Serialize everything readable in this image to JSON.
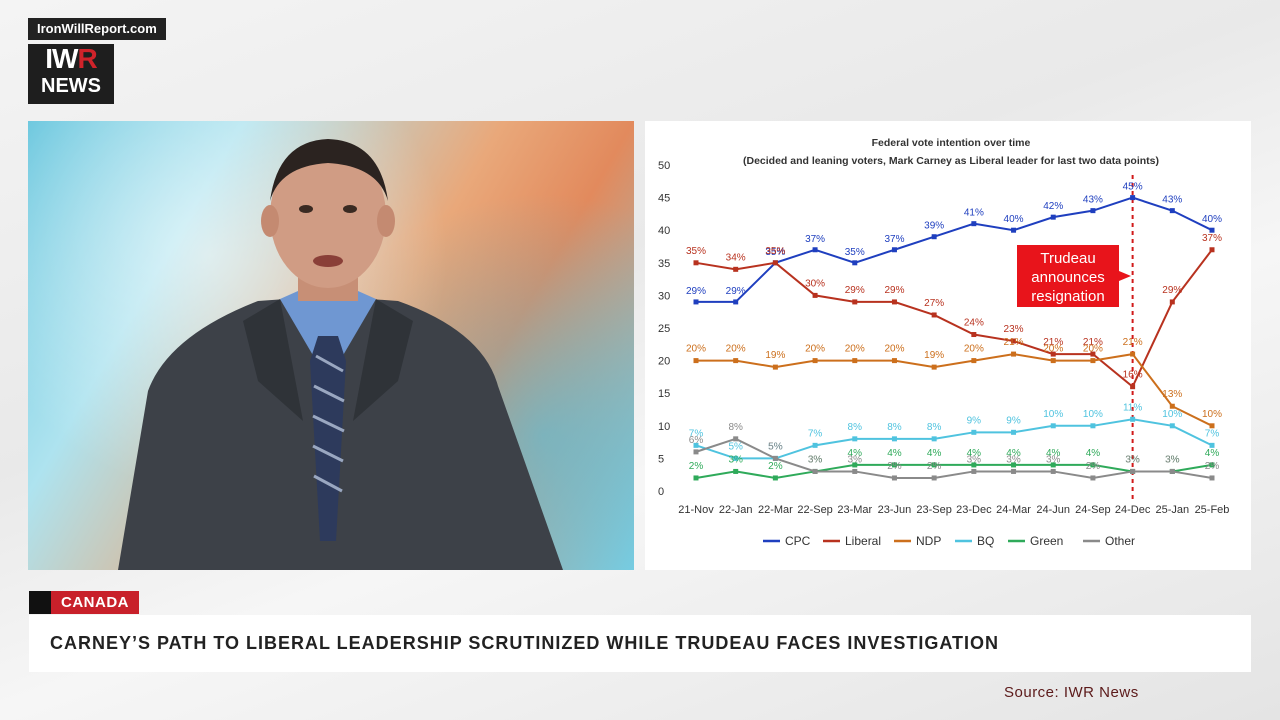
{
  "brand": {
    "url": "IronWillReport.com",
    "logo_top": "IWR",
    "logo_bottom": "NEWS"
  },
  "lower_third": {
    "category": "CANADA",
    "headline": "CARNEY’S PATH TO LIBERAL LEADERSHIP SCRUTINIZED WHILE TRUDEAU FACES INVESTIGATION",
    "source": "Source: IWR News"
  },
  "colors": {
    "accent": "#c8202a"
  },
  "chart_data": {
    "type": "line",
    "title": "Federal vote intention over time",
    "subtitle": "(Decided and leaning voters, Mark Carney as Liberal leader for last two data points)",
    "categories": [
      "21-Nov",
      "22-Jan",
      "22-Mar",
      "22-Sep",
      "23-Mar",
      "23-Jun",
      "23-Sep",
      "23-Dec",
      "24-Mar",
      "24-Jun",
      "24-Sep",
      "24-Dec",
      "25-Jan",
      "25-Feb"
    ],
    "ylim": [
      0,
      50
    ],
    "yticks": [
      "0",
      "5",
      "10",
      "15",
      "20",
      "25",
      "30",
      "35",
      "40",
      "45",
      "50"
    ],
    "grid": false,
    "legend": "bottom",
    "series": [
      {
        "name": "CPC",
        "color": "#1f3fbf",
        "values": [
          29,
          29,
          35,
          37,
          35,
          37,
          39,
          41,
          40,
          42,
          43,
          45,
          43,
          40
        ],
        "labels": [
          "29%",
          "29%",
          "35%",
          "37%",
          "35%",
          "37%",
          "39%",
          "41%",
          "40%",
          "42%",
          "43%",
          "45%",
          "43%",
          "40%"
        ]
      },
      {
        "name": "Liberal",
        "color": "#b8321f",
        "values": [
          35,
          34,
          35,
          30,
          29,
          29,
          27,
          24,
          23,
          21,
          21,
          16,
          29,
          37
        ],
        "labels": [
          "35%",
          "34%",
          "35%",
          "30%",
          "29%",
          "29%",
          "27%",
          "24%",
          "23%",
          "21%",
          "21%",
          "16%",
          "29%",
          "37%"
        ]
      },
      {
        "name": "NDP",
        "color": "#cc6f1c",
        "values": [
          20,
          20,
          19,
          20,
          20,
          20,
          19,
          20,
          21,
          20,
          20,
          21,
          13,
          10
        ],
        "labels": [
          "20%",
          "20%",
          "19%",
          "20%",
          "20%",
          "20%",
          "19%",
          "20%",
          "21%",
          "20%",
          "20%",
          "21%",
          "13%",
          "10%"
        ]
      },
      {
        "name": "BQ",
        "color": "#4fc3df",
        "values": [
          7,
          5,
          5,
          7,
          8,
          8,
          8,
          9,
          9,
          10,
          10,
          11,
          10,
          7
        ],
        "labels": [
          "7%",
          "5%",
          "5%",
          "7%",
          "8%",
          "8%",
          "8%",
          "9%",
          "9%",
          "10%",
          "10%",
          "11%",
          "10%",
          "7%"
        ]
      },
      {
        "name": "Green",
        "color": "#2faa5a",
        "values": [
          2,
          3,
          2,
          3,
          4,
          4,
          4,
          4,
          4,
          4,
          4,
          3,
          3,
          4
        ],
        "labels": [
          "2%",
          "3%",
          "2%",
          "3%",
          "4%",
          "4%",
          "4%",
          "4%",
          "4%",
          "4%",
          "4%",
          "3%",
          "3%",
          "4%"
        ]
      },
      {
        "name": "Other",
        "color": "#8a8a8a",
        "values": [
          6,
          8,
          5,
          3,
          3,
          2,
          2,
          3,
          3,
          3,
          2,
          3,
          3,
          2
        ],
        "labels": [
          "6%",
          "8%",
          "5%",
          "3%",
          "3%",
          "2%",
          "2%",
          "3%",
          "3%",
          "3%",
          "2%",
          "3%",
          "3%",
          "2%"
        ]
      }
    ],
    "annotation": {
      "text_lines": [
        "Trudeau",
        "announces",
        "resignation"
      ],
      "at_category": "24-Dec"
    }
  }
}
